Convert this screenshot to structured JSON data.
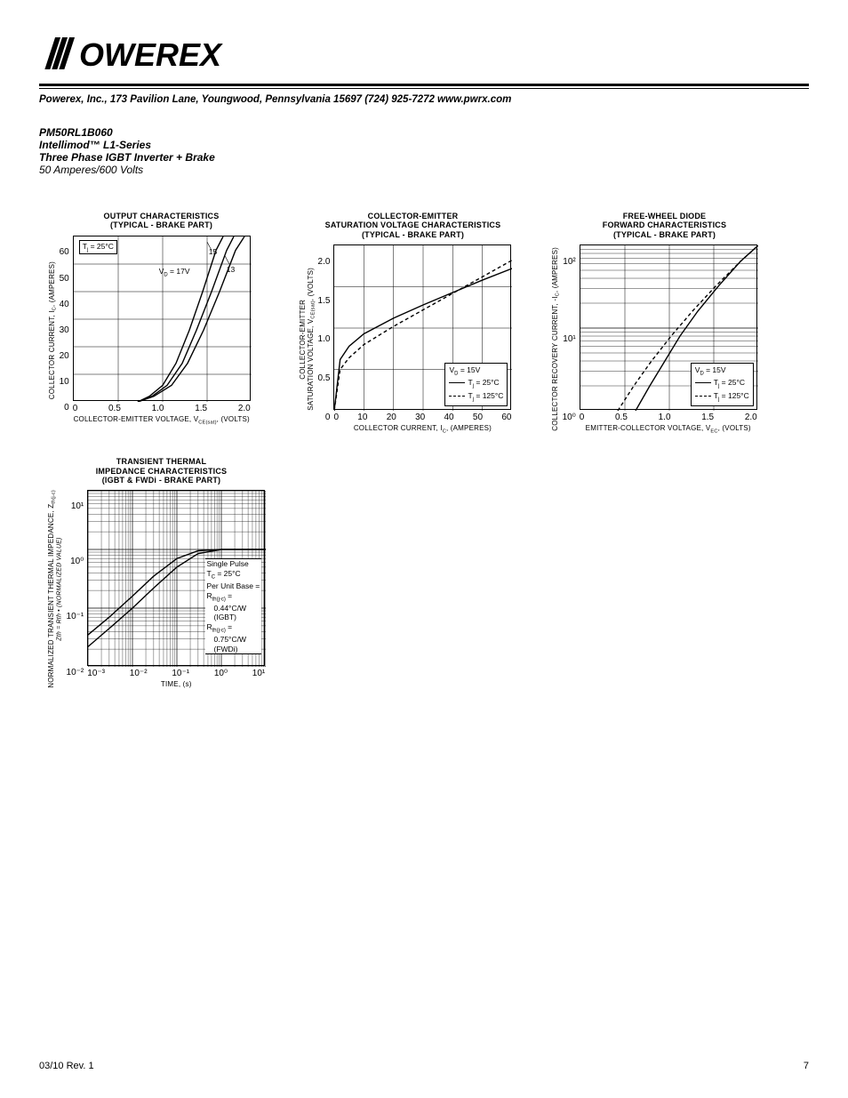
{
  "header": {
    "logo_text": "POWEREX",
    "contact": "Powerex, Inc., 173 Pavilion Lane, Youngwood, Pennsylvania  15697   (724) 925-7272  www.pwrx.com"
  },
  "part": {
    "number": "PM50RL1B060",
    "series": "Intellimod™  L1-Series",
    "desc": "Three Phase IGBT Inverter + Brake",
    "rating": "50 Amperes/600 Volts"
  },
  "chart1": {
    "title_l1": "OUTPUT CHARACTERISTICS",
    "title_l2": "(TYPICAL - BRAKE PART)",
    "ylabel": "COLLECTOR CURRENT, I",
    "ylabel_sub": "C",
    "ylabel_unit": ", (AMPERES)",
    "xlabel": "COLLECTOR-EMITTER VOLTAGE, V",
    "xlabel_sub": "CE(sat)",
    "xlabel_unit": ", (VOLTS)",
    "xticks": [
      "0",
      "0.5",
      "1.0",
      "1.5",
      "2.0"
    ],
    "yticks": [
      "60",
      "50",
      "40",
      "30",
      "20",
      "10",
      "0"
    ],
    "xlim": [
      0,
      2.0
    ],
    "ylim": [
      0,
      60
    ],
    "annot_tj": "Tj = 25°C",
    "annot_vd": "VD = 17V",
    "annot_15": "15",
    "annot_13": "13",
    "curves": {
      "c17": [
        [
          0.72,
          0
        ],
        [
          0.85,
          2
        ],
        [
          1.0,
          6
        ],
        [
          1.15,
          14
        ],
        [
          1.3,
          26
        ],
        [
          1.45,
          40
        ],
        [
          1.6,
          55
        ],
        [
          1.68,
          60
        ]
      ],
      "c15": [
        [
          0.72,
          0
        ],
        [
          0.88,
          2
        ],
        [
          1.05,
          6
        ],
        [
          1.22,
          14
        ],
        [
          1.38,
          26
        ],
        [
          1.55,
          40
        ],
        [
          1.72,
          55
        ],
        [
          1.8,
          60
        ]
      ],
      "c13": [
        [
          0.72,
          0
        ],
        [
          0.9,
          2
        ],
        [
          1.1,
          6
        ],
        [
          1.28,
          14
        ],
        [
          1.46,
          26
        ],
        [
          1.64,
          40
        ],
        [
          1.82,
          55
        ],
        [
          1.92,
          60
        ]
      ]
    }
  },
  "chart2": {
    "title_l1": "COLLECTOR-EMITTER",
    "title_l2": "SATURATION VOLTAGE CHARACTERISTICS",
    "title_l3": "(TYPICAL - BRAKE PART)",
    "ylabel_l1": "COLLECTOR-EMITTER",
    "ylabel_l2": "SATURATION VOLTAGE, V",
    "ylabel_sub": "CE(sat)",
    "ylabel_unit": ", (VOLTS)",
    "xlabel": "COLLECTOR CURRENT, I",
    "xlabel_sub": "C",
    "xlabel_unit": ", (AMPERES)",
    "xticks": [
      "0",
      "10",
      "20",
      "30",
      "40",
      "50",
      "60"
    ],
    "yticks": [
      "2.0",
      "1.5",
      "1.0",
      "0.5",
      "0"
    ],
    "xlim": [
      0,
      60
    ],
    "ylim": [
      0,
      2.0
    ],
    "legend_vd": "VD = 15V",
    "legend_tj25": "Tj = 25°C",
    "legend_tj125": "Tj = 125°C",
    "curves": {
      "t25": [
        [
          0,
          0
        ],
        [
          2,
          0.62
        ],
        [
          5,
          0.78
        ],
        [
          10,
          0.93
        ],
        [
          20,
          1.12
        ],
        [
          30,
          1.28
        ],
        [
          40,
          1.43
        ],
        [
          50,
          1.58
        ],
        [
          60,
          1.72
        ]
      ],
      "t125": [
        [
          0,
          0
        ],
        [
          2,
          0.5
        ],
        [
          5,
          0.64
        ],
        [
          10,
          0.8
        ],
        [
          20,
          1.02
        ],
        [
          30,
          1.22
        ],
        [
          40,
          1.42
        ],
        [
          50,
          1.62
        ],
        [
          60,
          1.82
        ]
      ]
    }
  },
  "chart3": {
    "title_l1": "FREE-WHEEL DIODE",
    "title_l2": "FORWARD CHARACTERISTICS",
    "title_l3": "(TYPICAL - BRAKE PART)",
    "ylabel": "COLLECTOR RECOVERY CURRENT, -I",
    "ylabel_sub": "C",
    "ylabel_unit": ", (AMPERES)",
    "xlabel": "EMITTER-COLLECTOR VOLTAGE, V",
    "xlabel_sub": "EC",
    "xlabel_unit": ", (VOLTS)",
    "xticks": [
      "0",
      "0.5",
      "1.0",
      "1.5",
      "2.0"
    ],
    "yticks": [
      "10²",
      "10¹",
      "10⁰"
    ],
    "ytick_vals": [
      100,
      10,
      1
    ],
    "xlim": [
      0,
      2.0
    ],
    "ylim_log": [
      1,
      100
    ],
    "legend_vd": "VD = 15V",
    "legend_tj25": "Tj = 25°C",
    "legend_tj125": "Tj = 125°C",
    "curves": {
      "t25": [
        [
          0.62,
          1
        ],
        [
          0.78,
          2
        ],
        [
          0.95,
          4
        ],
        [
          1.12,
          8
        ],
        [
          1.32,
          16
        ],
        [
          1.55,
          32
        ],
        [
          1.8,
          64
        ],
        [
          2.0,
          100
        ]
      ],
      "t125": [
        [
          0.42,
          1
        ],
        [
          0.6,
          2
        ],
        [
          0.8,
          4
        ],
        [
          1.02,
          8
        ],
        [
          1.26,
          16
        ],
        [
          1.52,
          32
        ],
        [
          1.8,
          64
        ],
        [
          2.0,
          100
        ]
      ]
    }
  },
  "chart4": {
    "title_l1": "TRANSIENT THERMAL",
    "title_l2": "IMPEDANCE CHARACTERISTICS",
    "title_l3": "(IGBT & FWDi - BRAKE PART)",
    "ylabel_l1": "NORMALIZED TRANSIENT THERMAL IMPEDANCE, Z",
    "ylabel_sub1": "th(j-c)",
    "ylabel_l2": "Zth = Rth • (NORMALIZED VALUE)",
    "xlabel": "TIME, (s)",
    "xticks": [
      "10⁻³",
      "10⁻²",
      "10⁻¹",
      "10⁰",
      "10¹"
    ],
    "yticks": [
      "10¹",
      "10⁰",
      "10⁻¹",
      "10⁻²"
    ],
    "xtick_vals": [
      0.001,
      0.01,
      0.1,
      1,
      10
    ],
    "ytick_vals": [
      10,
      1,
      0.1,
      0.01
    ],
    "info_l1": "Single Pulse",
    "info_l2": "TC = 25°C",
    "info_l3": "Per Unit Base =",
    "info_l4": "Rth(j-c) =",
    "info_l5": "0.44°C/W",
    "info_l6": "(IGBT)",
    "info_l7": "Rth(j-c) =",
    "info_l8": "0.75°C/W",
    "info_l9": "(FWDi)",
    "curves": {
      "igbt": [
        [
          0.001,
          0.022
        ],
        [
          0.003,
          0.045
        ],
        [
          0.01,
          0.1
        ],
        [
          0.03,
          0.22
        ],
        [
          0.1,
          0.5
        ],
        [
          0.3,
          0.85
        ],
        [
          1,
          1.0
        ],
        [
          10,
          1.0
        ]
      ],
      "fwdi": [
        [
          0.001,
          0.035
        ],
        [
          0.003,
          0.07
        ],
        [
          0.01,
          0.16
        ],
        [
          0.03,
          0.35
        ],
        [
          0.1,
          0.7
        ],
        [
          0.3,
          0.95
        ],
        [
          1,
          1.0
        ],
        [
          10,
          1.0
        ]
      ]
    }
  },
  "footer": {
    "rev": "03/10 Rev. 1",
    "page": "7"
  },
  "colors": {
    "stroke": "#000000",
    "bg": "#ffffff",
    "grid": "#000000"
  }
}
